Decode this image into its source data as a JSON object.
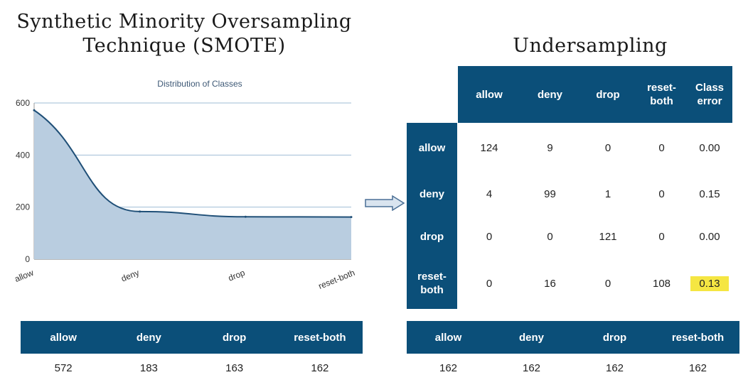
{
  "smote_title_line1": "Synthetic Minority Oversampling",
  "smote_title_line2": "Technique (SMOTE)",
  "undersampling_title": "Undersampling",
  "chart_data": {
    "type": "area",
    "title": "Distribution of Classes",
    "categories": [
      "allow",
      "deny",
      "drop",
      "reset-both"
    ],
    "values": [
      572,
      183,
      163,
      162
    ],
    "ylim": [
      0,
      600
    ],
    "yticks": [
      0,
      200,
      400,
      600
    ],
    "grid": true,
    "fill_color": "#b9cde0",
    "line_color": "#1f4f77"
  },
  "smote_counts": {
    "headers": [
      "allow",
      "deny",
      "drop",
      "reset-both"
    ],
    "values": [
      "572",
      "183",
      "163",
      "162"
    ]
  },
  "confusion_matrix": {
    "col_headers": [
      "allow",
      "deny",
      "drop",
      "reset-both",
      "Class error"
    ],
    "col_headers_display": [
      [
        "allow"
      ],
      [
        "deny"
      ],
      [
        "drop"
      ],
      [
        "reset-",
        "both"
      ],
      [
        "Class",
        "error"
      ]
    ],
    "row_headers": [
      "allow",
      "deny",
      "drop",
      "reset-both"
    ],
    "row_headers_display": [
      [
        "allow"
      ],
      [
        "deny"
      ],
      [
        "drop"
      ],
      [
        "reset-",
        "both"
      ]
    ],
    "rows": [
      [
        "124",
        "9",
        "0",
        "0",
        "0.00"
      ],
      [
        "4",
        "99",
        "1",
        "0",
        "0.15"
      ],
      [
        "0",
        "0",
        "121",
        "0",
        "0.00"
      ],
      [
        "0",
        "16",
        "0",
        "108",
        "0.13"
      ]
    ],
    "highlight_color": "#f5e642"
  },
  "under_counts": {
    "headers": [
      "allow",
      "deny",
      "drop",
      "reset-both"
    ],
    "values": [
      "162",
      "162",
      "162",
      "162"
    ]
  },
  "colors": {
    "header_bg": "#0b4f79",
    "header_text": "#ffffff"
  }
}
